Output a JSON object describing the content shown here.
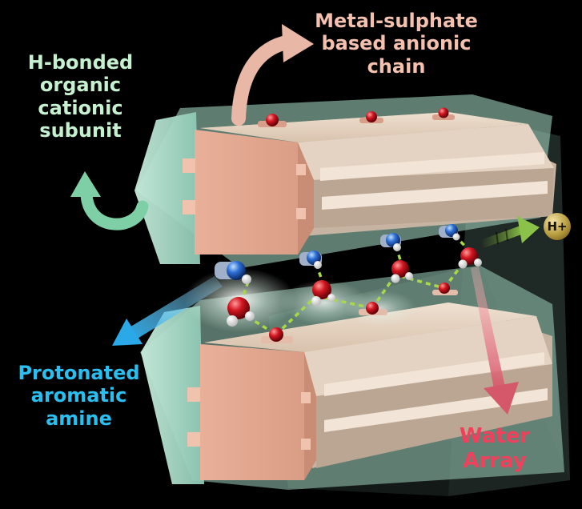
{
  "labels": {
    "metal_sulphate": [
      "Metal-sulphate",
      "based anionic",
      "chain"
    ],
    "h_bonded": [
      "H-bonded",
      "organic",
      "cationic",
      "subunit"
    ],
    "protonated": [
      "Protonated",
      "aromatic",
      "amine"
    ],
    "water": [
      "Water",
      "Array"
    ],
    "proton": "H+"
  },
  "colors": {
    "background": "#000000",
    "sulphate_chain": "#e4aa91",
    "sulphate_top_face": "#ead6c4",
    "cationic_sheath": "#a9d8c6",
    "oxygen": "#d11620",
    "nitrogen": "#2d6fd6",
    "hydrogen_bond": "#a8d84a",
    "proton_arrow": "#8bc34a",
    "metal_label": "#f4c1ae",
    "hbond_label": "#c6f1d0",
    "amine_label": "#29bff0",
    "water_label": "#f0405b"
  }
}
